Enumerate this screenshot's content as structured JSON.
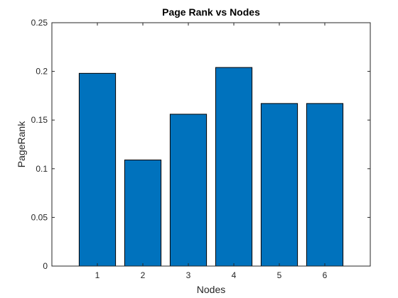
{
  "chart_data": {
    "type": "bar",
    "title": "Page Rank vs Nodes",
    "xlabel": "Nodes",
    "ylabel": "PageRank",
    "categories": [
      "1",
      "2",
      "3",
      "4",
      "5",
      "6"
    ],
    "values": [
      0.198,
      0.109,
      0.156,
      0.204,
      0.167,
      0.167
    ],
    "xlim": [
      0,
      7
    ],
    "ylim": [
      0,
      0.25
    ],
    "yticks": [
      0,
      0.05,
      0.1,
      0.15,
      0.2,
      0.25
    ],
    "ytick_labels": [
      "0",
      "0.05",
      "0.1",
      "0.15",
      "0.2",
      "0.25"
    ],
    "grid": false,
    "legend": "none",
    "bar_color": "#0072BD"
  }
}
